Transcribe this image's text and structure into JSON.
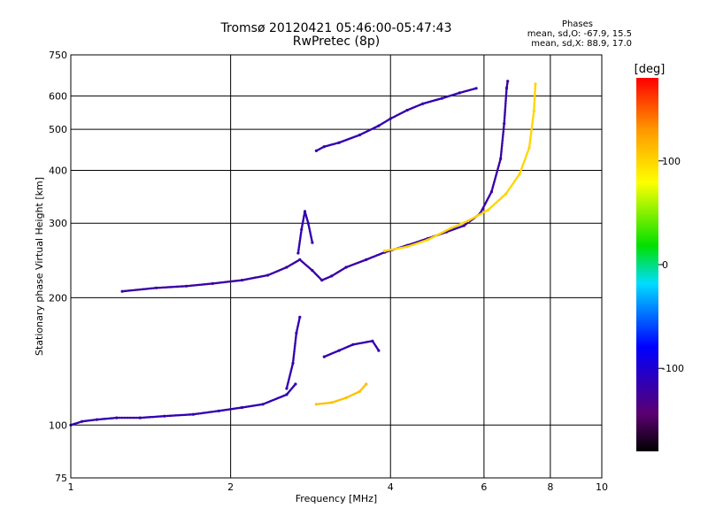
{
  "chart_data": {
    "type": "scatter",
    "title": "Tromsø 20120421 05:46:00-05:47:43",
    "subtitle": "RwPretec (8p)",
    "xlabel": "Frequency [MHz]",
    "ylabel": "Stationary phase Virtual Height [km]",
    "xscale": "log",
    "yscale": "log",
    "xlim": [
      1,
      10
    ],
    "ylim": [
      75,
      750
    ],
    "x_ticks": [
      1,
      2,
      4,
      6,
      8,
      10
    ],
    "y_ticks": [
      75,
      100,
      200,
      300,
      400,
      500,
      600,
      750
    ],
    "grid": true,
    "colorbar": {
      "label": "[deg]",
      "ticks": [
        100,
        0,
        -100
      ],
      "range": [
        -180,
        180
      ]
    },
    "phase_stats": {
      "title": "Phases",
      "o_line": "mean, sd,O: -67.9, 15.5",
      "x_line": "mean, sd,X: 88.9, 17.0"
    },
    "series": [
      {
        "points": [
          [
            1.0,
            100
          ],
          [
            1.05,
            102
          ],
          [
            1.12,
            103
          ],
          [
            1.22,
            104
          ],
          [
            1.35,
            104
          ],
          [
            1.5,
            105
          ],
          [
            1.7,
            106
          ],
          [
            1.9,
            108
          ],
          [
            2.1,
            110
          ],
          [
            2.3,
            112
          ],
          [
            2.55,
            118
          ],
          [
            2.65,
            125
          ]
        ],
        "phase": -115
      },
      {
        "points": [
          [
            2.55,
            122
          ],
          [
            2.62,
            140
          ],
          [
            2.66,
            165
          ],
          [
            2.7,
            180
          ]
        ],
        "phase": -115
      },
      {
        "points": [
          [
            2.9,
            112
          ],
          [
            3.1,
            113
          ],
          [
            3.3,
            116
          ],
          [
            3.5,
            120
          ],
          [
            3.6,
            125
          ]
        ],
        "phase": 110
      },
      {
        "points": [
          [
            3.0,
            145
          ],
          [
            3.2,
            150
          ],
          [
            3.4,
            155
          ],
          [
            3.7,
            158
          ],
          [
            3.8,
            150
          ]
        ],
        "phase": -115
      },
      {
        "points": [
          [
            1.25,
            207
          ],
          [
            1.45,
            211
          ],
          [
            1.65,
            213
          ],
          [
            1.85,
            216
          ],
          [
            2.1,
            220
          ],
          [
            2.35,
            226
          ],
          [
            2.55,
            236
          ],
          [
            2.7,
            246
          ],
          [
            2.85,
            232
          ],
          [
            2.97,
            220
          ],
          [
            3.1,
            225
          ],
          [
            3.3,
            236
          ],
          [
            3.6,
            246
          ],
          [
            3.9,
            256
          ],
          [
            4.3,
            266
          ],
          [
            4.7,
            276
          ],
          [
            5.1,
            286
          ],
          [
            5.5,
            296
          ],
          [
            5.9,
            316
          ],
          [
            6.2,
            356
          ],
          [
            6.45,
            426
          ],
          [
            6.55,
            516
          ],
          [
            6.62,
            626
          ],
          [
            6.65,
            650
          ]
        ],
        "phase": -120
      },
      {
        "points": [
          [
            2.68,
            255
          ],
          [
            2.72,
            290
          ],
          [
            2.76,
            320
          ],
          [
            2.8,
            300
          ],
          [
            2.85,
            270
          ]
        ],
        "phase": -115
      },
      {
        "points": [
          [
            3.9,
            258
          ],
          [
            4.3,
            264
          ],
          [
            4.7,
            274
          ],
          [
            5.2,
            292
          ],
          [
            5.6,
            304
          ],
          [
            6.1,
            322
          ],
          [
            6.6,
            352
          ],
          [
            7.0,
            392
          ],
          [
            7.3,
            452
          ],
          [
            7.45,
            552
          ],
          [
            7.5,
            640
          ]
        ],
        "phase": 100
      },
      {
        "points": [
          [
            2.9,
            445
          ],
          [
            3.0,
            455
          ],
          [
            3.2,
            465
          ],
          [
            3.5,
            485
          ],
          [
            3.8,
            510
          ],
          [
            4.0,
            530
          ],
          [
            4.3,
            555
          ],
          [
            4.6,
            575
          ],
          [
            5.0,
            592
          ],
          [
            5.4,
            610
          ],
          [
            5.8,
            625
          ]
        ],
        "phase": -115
      }
    ]
  }
}
